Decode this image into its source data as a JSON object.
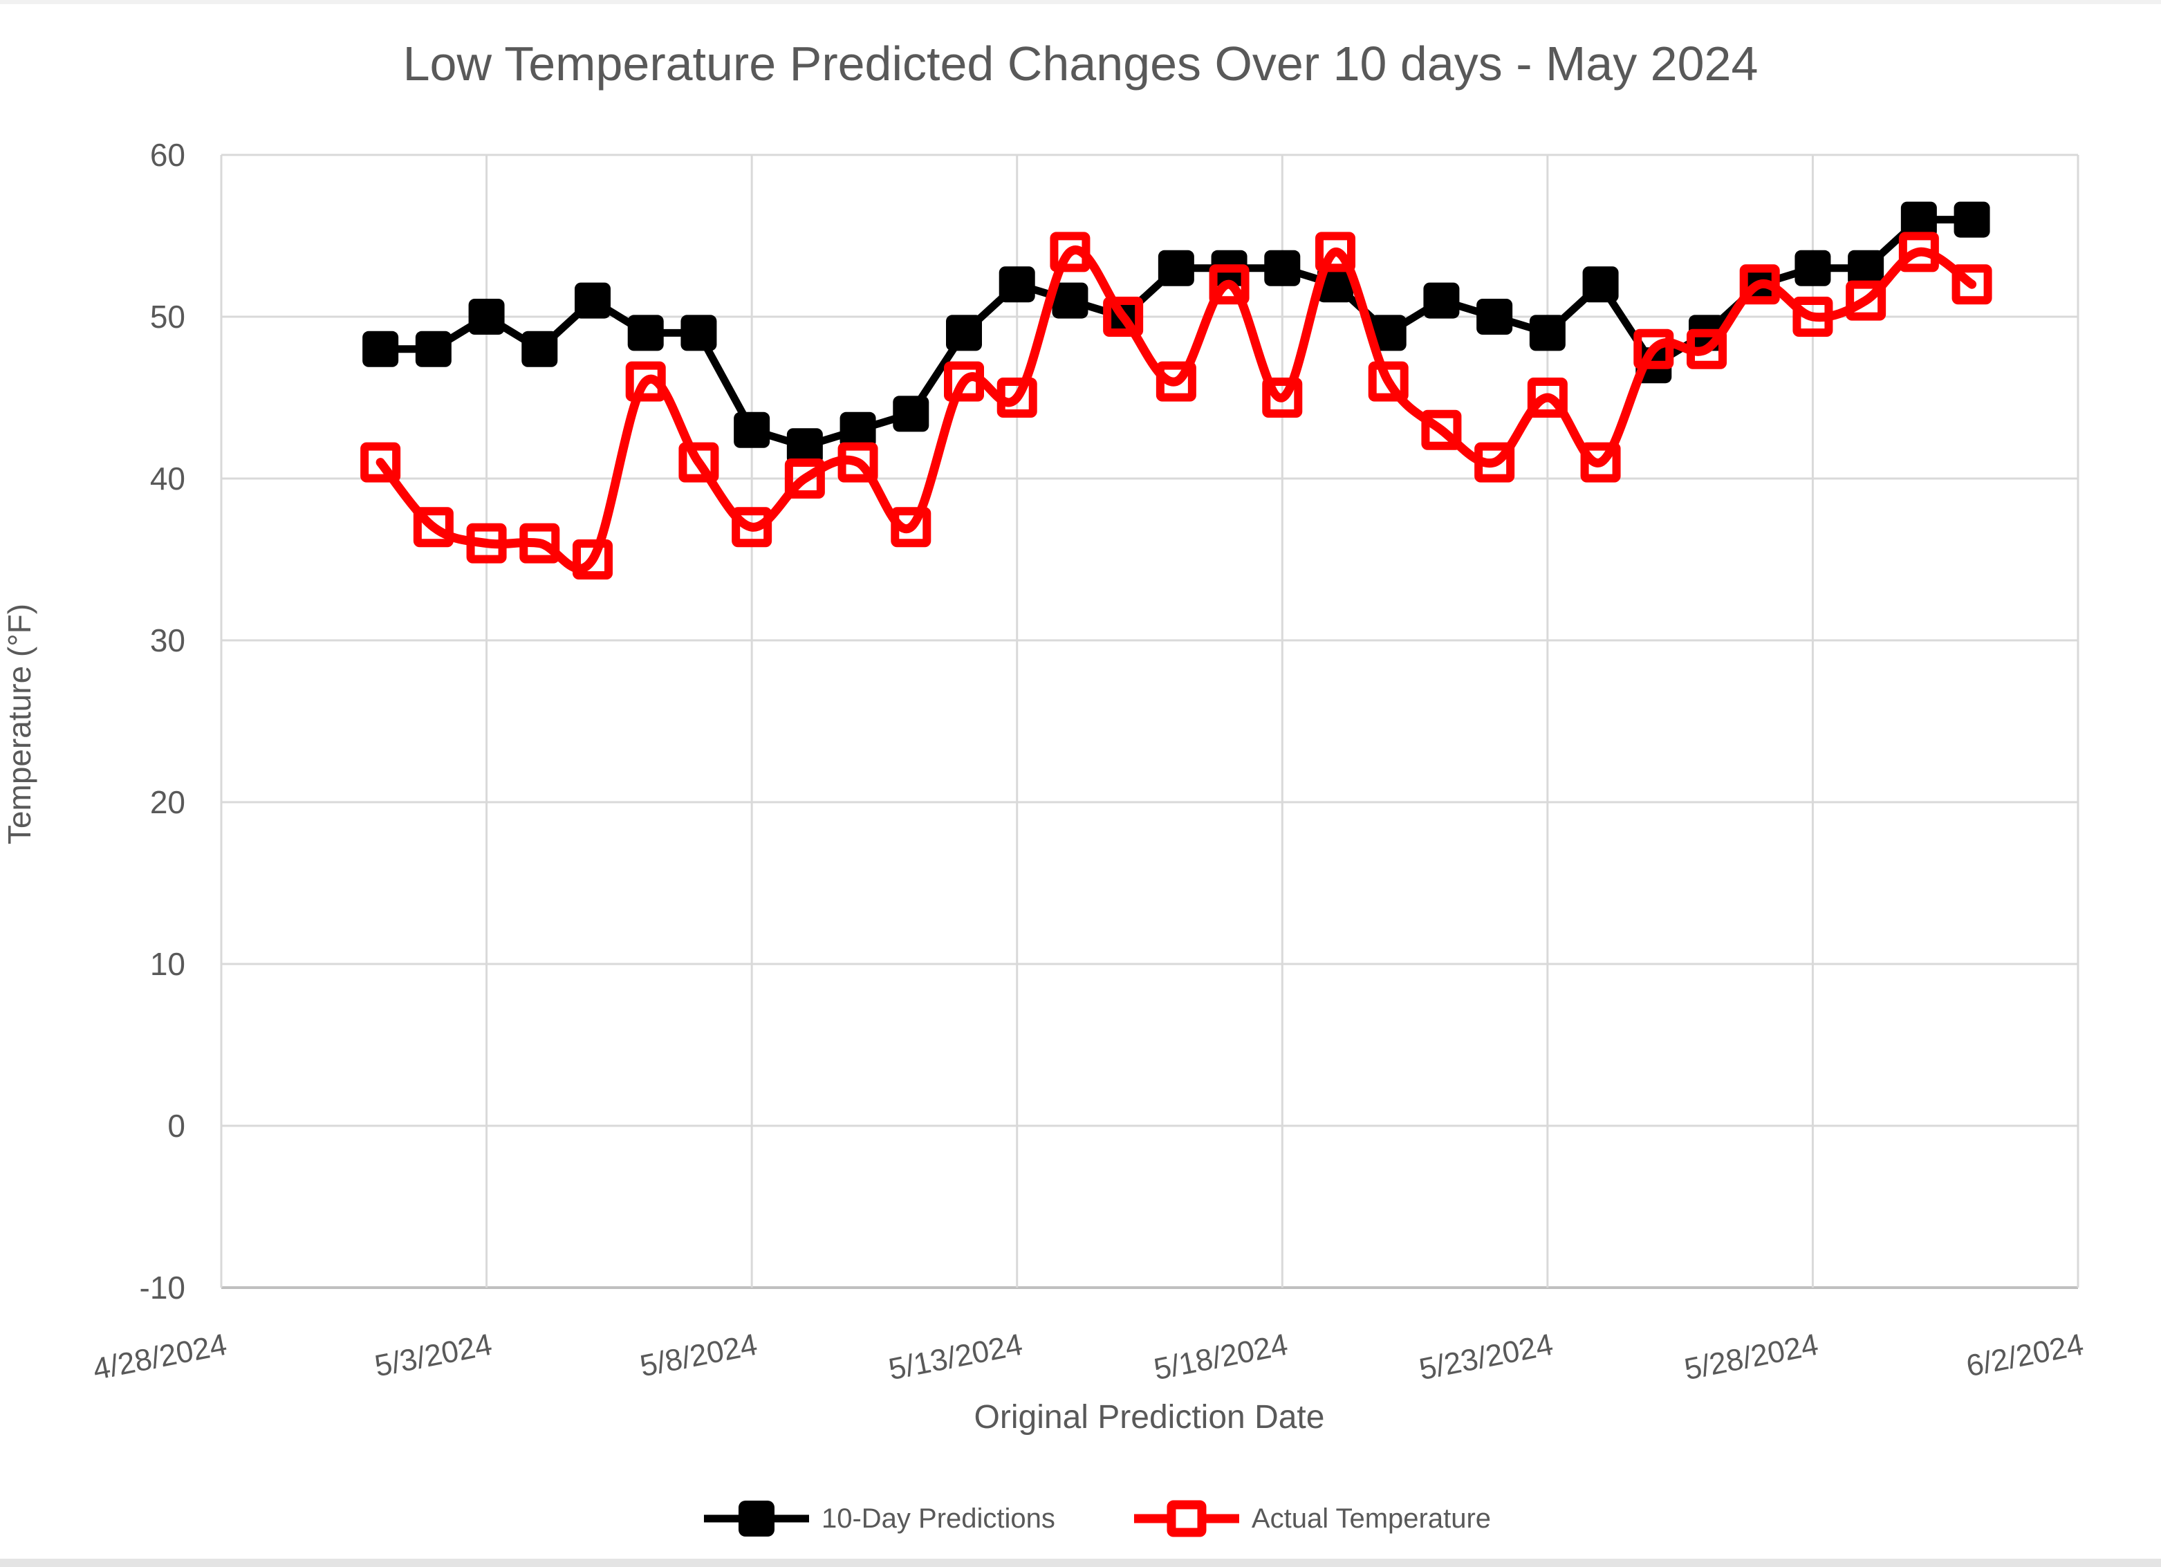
{
  "title": "Low Temperature Predicted Changes Over 10 days - May 2024",
  "legend": {
    "series1_label": "10-Day Predictions",
    "series2_label": "Actual Temperature"
  },
  "colors": {
    "series1": "#000000",
    "series2": "#FF0000",
    "gridline": "#D9D9D9",
    "axis_line": "#BFBFBF",
    "text": "#595959"
  },
  "chart_data": {
    "type": "line",
    "title": "Low Temperature Predicted Changes Over 10 days - May 2024",
    "xlabel": "Original Prediction Date",
    "ylabel": "Temperature (°F)",
    "ylim": [
      -10,
      60
    ],
    "y_ticks": [
      60,
      50,
      40,
      30,
      20,
      10,
      0,
      -10
    ],
    "x_tick_labels": [
      "4/28/2024",
      "5/3/2024",
      "5/8/2024",
      "5/13/2024",
      "5/18/2024",
      "5/23/2024",
      "5/28/2024",
      "6/2/2024"
    ],
    "x_tick_day_offsets": [
      0,
      5,
      10,
      15,
      20,
      25,
      30,
      35
    ],
    "x_range_days": 35,
    "grid": true,
    "legend_position": "bottom",
    "categories": [
      "5/1/2024",
      "5/2/2024",
      "5/3/2024",
      "5/4/2024",
      "5/5/2024",
      "5/6/2024",
      "5/7/2024",
      "5/8/2024",
      "5/9/2024",
      "5/10/2024",
      "5/11/2024",
      "5/12/2024",
      "5/13/2024",
      "5/14/2024",
      "5/15/2024",
      "5/16/2024",
      "5/17/2024",
      "5/18/2024",
      "5/19/2024",
      "5/20/2024",
      "5/21/2024",
      "5/22/2024",
      "5/23/2024",
      "5/24/2024",
      "5/25/2024",
      "5/26/2024",
      "5/27/2024",
      "5/28/2024",
      "5/29/2024",
      "5/30/2024",
      "5/31/2024"
    ],
    "start_day_offset": 3,
    "series": [
      {
        "name": "10-Day Predictions",
        "color": "#000000",
        "marker": "filled-square",
        "smooth": false,
        "values": [
          48,
          48,
          50,
          48,
          51,
          49,
          49,
          43,
          42,
          43,
          44,
          49,
          52,
          51,
          50,
          53,
          53,
          53,
          52,
          49,
          51,
          50,
          49,
          52,
          47,
          49,
          52,
          53,
          53,
          56,
          56
        ]
      },
      {
        "name": "Actual Temperature",
        "color": "#FF0000",
        "marker": "open-square",
        "smooth": true,
        "values": [
          41,
          37,
          36,
          36,
          35,
          46,
          41,
          37,
          40,
          41,
          37,
          46,
          45,
          54,
          50,
          46,
          52,
          45,
          54,
          46,
          43,
          41,
          45,
          41,
          48,
          48,
          52,
          50,
          51,
          54,
          52
        ]
      }
    ]
  }
}
